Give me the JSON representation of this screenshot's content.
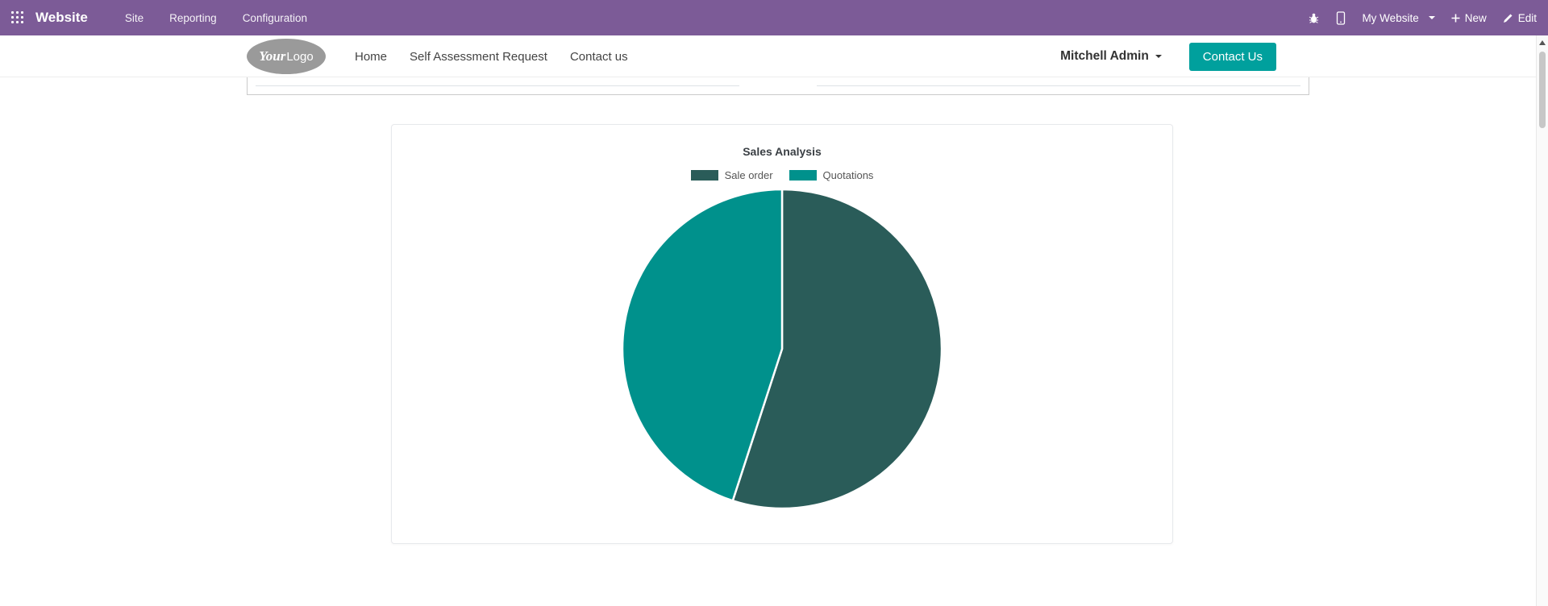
{
  "colors": {
    "topbar_bg": "#7c5b97",
    "accent_teal": "#00A09D",
    "pie_dark": "#2a5c59",
    "pie_teal": "#00918c"
  },
  "top_bar": {
    "brand": "Website",
    "menu": [
      {
        "label": "Site"
      },
      {
        "label": "Reporting"
      },
      {
        "label": "Configuration"
      }
    ],
    "my_website_label": "My Website",
    "new_label": "New",
    "edit_label": "Edit"
  },
  "site_header": {
    "logo": {
      "your": "Your",
      "logo": "Logo"
    },
    "nav": [
      {
        "label": "Home"
      },
      {
        "label": "Self Assessment Request"
      },
      {
        "label": "Contact us"
      }
    ],
    "user_name": "Mitchell Admin",
    "contact_button": "Contact Us"
  },
  "chart_data": {
    "type": "pie",
    "title": "Sales Analysis",
    "legend_position": "top",
    "series": [
      {
        "label": "Sale order",
        "value": 55,
        "color": "#2a5c59"
      },
      {
        "label": "Quotations",
        "value": 45,
        "color": "#00918c"
      }
    ]
  }
}
